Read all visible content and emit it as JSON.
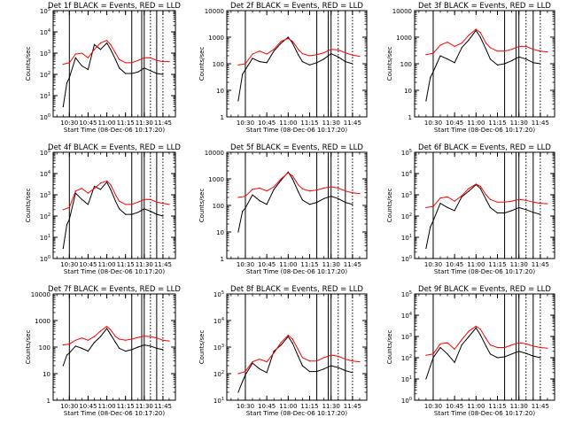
{
  "figure": {
    "xlabel": "Start Time (08-Dec-06 10:17:20)",
    "ylabel": "Counts/sec",
    "x_ticks": [
      "10:30",
      "10:45",
      "11:00",
      "11:15",
      "11:30",
      "11:45"
    ],
    "events_color": "#000000",
    "lld_color": "#ff0000"
  },
  "chart_data": [
    {
      "type": "line",
      "title": "Det 1f BLACK = Events, RED = LLD",
      "y_scale": "log",
      "y_tick_labels": [
        "10^0",
        "10^1",
        "10^2",
        "10^3",
        "10^4",
        "10^5"
      ],
      "series": [
        {
          "name": "Events",
          "x": [
            "10:25",
            "10:28",
            "10:30",
            "10:35",
            "10:40",
            "10:45",
            "10:50",
            "10:55",
            "11:00",
            "11:03",
            "11:07",
            "11:10",
            "11:15",
            "11:20",
            "11:25",
            "11:30",
            "11:35",
            "11:40",
            "11:45"
          ],
          "values": [
            3,
            40,
            70,
            600,
            250,
            170,
            2500,
            1500,
            3000,
            1500,
            500,
            200,
            110,
            110,
            130,
            200,
            150,
            110,
            100
          ]
        },
        {
          "name": "LLD",
          "x": [
            "10:25",
            "10:30",
            "10:35",
            "10:40",
            "10:45",
            "10:50",
            "10:55",
            "11:00",
            "11:03",
            "11:07",
            "11:10",
            "11:15",
            "11:20",
            "11:25",
            "11:30",
            "11:35",
            "11:40",
            "11:45",
            "11:50"
          ],
          "values": [
            300,
            350,
            900,
            1000,
            600,
            1500,
            3000,
            4000,
            2500,
            1000,
            500,
            350,
            350,
            450,
            600,
            600,
            450,
            400,
            400
          ]
        }
      ]
    },
    {
      "type": "line",
      "title": "Det 2f BLACK = Events, RED = LLD",
      "y_scale": "log",
      "y_tick_labels": [
        "1",
        "10",
        "100",
        "1000",
        "10000"
      ],
      "series": [
        {
          "name": "Events",
          "x": [
            "10:25",
            "10:28",
            "10:30",
            "10:35",
            "10:40",
            "10:45",
            "10:50",
            "10:55",
            "11:00",
            "11:03",
            "11:07",
            "11:10",
            "11:15",
            "11:20",
            "11:25",
            "11:30",
            "11:35",
            "11:40",
            "11:45"
          ],
          "values": [
            4,
            40,
            60,
            160,
            120,
            110,
            300,
            600,
            1000,
            600,
            220,
            120,
            90,
            110,
            150,
            240,
            180,
            120,
            100
          ]
        },
        {
          "name": "LLD",
          "x": [
            "10:25",
            "10:30",
            "10:35",
            "10:40",
            "10:45",
            "10:50",
            "10:55",
            "11:00",
            "11:03",
            "11:07",
            "11:10",
            "11:15",
            "11:20",
            "11:25",
            "11:30",
            "11:35",
            "11:40",
            "11:45",
            "11:50"
          ],
          "values": [
            90,
            100,
            230,
            300,
            230,
            350,
            700,
            900,
            700,
            350,
            240,
            200,
            220,
            260,
            350,
            330,
            260,
            210,
            190
          ]
        }
      ]
    },
    {
      "type": "line",
      "title": "Det 3f BLACK = Events, RED = LLD",
      "y_scale": "log",
      "y_tick_labels": [
        "1",
        "10",
        "100",
        "1000",
        "10000"
      ],
      "series": [
        {
          "name": "Events",
          "x": [
            "10:25",
            "10:28",
            "10:30",
            "10:35",
            "10:40",
            "10:45",
            "10:50",
            "10:55",
            "11:00",
            "11:03",
            "11:07",
            "11:10",
            "11:15",
            "11:20",
            "11:25",
            "11:30",
            "11:35",
            "11:40",
            "11:45"
          ],
          "values": [
            4,
            30,
            50,
            200,
            150,
            110,
            400,
            800,
            1800,
            1000,
            350,
            150,
            90,
            100,
            130,
            180,
            150,
            110,
            100
          ]
        },
        {
          "name": "LLD",
          "x": [
            "10:25",
            "10:30",
            "10:35",
            "10:40",
            "10:45",
            "10:50",
            "10:55",
            "11:00",
            "11:03",
            "11:07",
            "11:10",
            "11:15",
            "11:20",
            "11:25",
            "11:30",
            "11:35",
            "11:40",
            "11:45",
            "11:50"
          ],
          "values": [
            220,
            250,
            500,
            650,
            450,
            600,
            1200,
            2000,
            1500,
            600,
            400,
            300,
            300,
            350,
            450,
            450,
            350,
            300,
            280
          ]
        }
      ]
    },
    {
      "type": "line",
      "title": "Det 4f BLACK = Events, RED = LLD",
      "y_scale": "log",
      "y_tick_labels": [
        "10^0",
        "10^1",
        "10^2",
        "10^3",
        "10^4",
        "10^5"
      ],
      "series": [
        {
          "name": "Events",
          "x": [
            "10:25",
            "10:28",
            "10:30",
            "10:35",
            "10:40",
            "10:45",
            "10:50",
            "10:55",
            "11:00",
            "11:03",
            "11:07",
            "11:10",
            "11:15",
            "11:20",
            "11:25",
            "11:30",
            "11:35",
            "11:40",
            "11:45"
          ],
          "values": [
            3,
            40,
            70,
            1200,
            600,
            350,
            2500,
            1800,
            4000,
            1800,
            500,
            220,
            120,
            120,
            150,
            220,
            170,
            120,
            100
          ]
        },
        {
          "name": "LLD",
          "x": [
            "10:25",
            "10:30",
            "10:35",
            "10:40",
            "10:45",
            "10:50",
            "10:55",
            "11:00",
            "11:03",
            "11:07",
            "11:10",
            "11:15",
            "11:20",
            "11:25",
            "11:30",
            "11:35",
            "11:40",
            "11:45",
            "11:50"
          ],
          "values": [
            200,
            250,
            1500,
            2000,
            1200,
            2000,
            3500,
            4500,
            3000,
            1000,
            500,
            350,
            350,
            450,
            600,
            600,
            450,
            400,
            350
          ]
        }
      ]
    },
    {
      "type": "line",
      "title": "Det 5f BLACK = Events, RED = LLD",
      "y_scale": "log",
      "y_tick_labels": [
        "1",
        "10",
        "100",
        "1000",
        "10000"
      ],
      "series": [
        {
          "name": "Events",
          "x": [
            "10:25",
            "10:28",
            "10:30",
            "10:35",
            "10:40",
            "10:45",
            "10:50",
            "10:55",
            "11:00",
            "11:03",
            "11:07",
            "11:10",
            "11:15",
            "11:20",
            "11:25",
            "11:30",
            "11:35",
            "11:40",
            "11:45"
          ],
          "values": [
            10,
            60,
            80,
            250,
            150,
            110,
            400,
            900,
            1800,
            1000,
            330,
            160,
            110,
            130,
            180,
            220,
            180,
            130,
            110
          ]
        },
        {
          "name": "LLD",
          "x": [
            "10:25",
            "10:30",
            "10:35",
            "10:40",
            "10:45",
            "10:50",
            "10:55",
            "11:00",
            "11:03",
            "11:07",
            "11:10",
            "11:15",
            "11:20",
            "11:25",
            "11:30",
            "11:35",
            "11:40",
            "11:45",
            "11:50"
          ],
          "values": [
            200,
            220,
            400,
            450,
            350,
            500,
            1000,
            1700,
            1300,
            600,
            420,
            350,
            380,
            450,
            500,
            450,
            350,
            300,
            280
          ]
        }
      ]
    },
    {
      "type": "line",
      "title": "Det 6f BLACK = Events, RED = LLD",
      "y_scale": "log",
      "y_tick_labels": [
        "10^0",
        "10^1",
        "10^2",
        "10^3",
        "10^4",
        "10^5"
      ],
      "series": [
        {
          "name": "Events",
          "x": [
            "10:25",
            "10:28",
            "10:30",
            "10:35",
            "10:40",
            "10:45",
            "10:50",
            "10:55",
            "11:00",
            "11:03",
            "11:07",
            "11:10",
            "11:15",
            "11:20",
            "11:25",
            "11:30",
            "11:35",
            "11:40",
            "11:45"
          ],
          "values": [
            3,
            30,
            60,
            400,
            250,
            180,
            800,
            1500,
            3000,
            2000,
            600,
            250,
            140,
            140,
            180,
            250,
            200,
            150,
            120
          ]
        },
        {
          "name": "LLD",
          "x": [
            "10:25",
            "10:30",
            "10:35",
            "10:40",
            "10:45",
            "10:50",
            "10:55",
            "11:00",
            "11:03",
            "11:07",
            "11:10",
            "11:15",
            "11:20",
            "11:25",
            "11:30",
            "11:35",
            "11:40",
            "11:45",
            "11:50"
          ],
          "values": [
            250,
            280,
            700,
            800,
            500,
            900,
            2000,
            3200,
            2500,
            1000,
            600,
            450,
            450,
            500,
            600,
            550,
            450,
            400,
            380
          ]
        }
      ]
    },
    {
      "type": "line",
      "title": "Det 7f BLACK = Events, RED = LLD",
      "y_scale": "log",
      "y_tick_labels": [
        "1",
        "10",
        "100",
        "1000",
        "10000"
      ],
      "series": [
        {
          "name": "Events",
          "x": [
            "10:25",
            "10:28",
            "10:30",
            "10:35",
            "10:40",
            "10:45",
            "10:50",
            "10:55",
            "11:00",
            "11:03",
            "11:07",
            "11:10",
            "11:15",
            "11:20",
            "11:25",
            "11:30",
            "11:35",
            "11:40",
            "11:45"
          ],
          "values": [
            20,
            50,
            60,
            110,
            90,
            70,
            150,
            250,
            500,
            300,
            150,
            90,
            70,
            80,
            100,
            120,
            110,
            90,
            80
          ]
        },
        {
          "name": "LLD",
          "x": [
            "10:25",
            "10:30",
            "10:35",
            "10:40",
            "10:45",
            "10:50",
            "10:55",
            "11:00",
            "11:03",
            "11:07",
            "11:10",
            "11:15",
            "11:20",
            "11:25",
            "11:30",
            "11:35",
            "11:40",
            "11:45",
            "11:50"
          ],
          "values": [
            120,
            130,
            180,
            220,
            180,
            250,
            400,
            600,
            450,
            250,
            200,
            180,
            200,
            230,
            260,
            250,
            220,
            180,
            170
          ]
        }
      ]
    },
    {
      "type": "line",
      "title": "Det 8f BLACK = Events, RED = LLD",
      "y_scale": "log",
      "y_tick_labels": [
        "10^1",
        "10^2",
        "10^3",
        "10^4",
        "10^5"
      ],
      "series": [
        {
          "name": "Events",
          "x": [
            "10:25",
            "10:28",
            "10:30",
            "10:35",
            "10:40",
            "10:45",
            "10:50",
            "10:55",
            "11:00",
            "11:03",
            "11:07",
            "11:10",
            "11:15",
            "11:20",
            "11:25",
            "11:30",
            "11:35",
            "11:40",
            "11:45"
          ],
          "values": [
            20,
            50,
            90,
            250,
            150,
            110,
            700,
            1200,
            2500,
            1400,
            450,
            200,
            120,
            120,
            150,
            200,
            170,
            130,
            110
          ]
        },
        {
          "name": "LLD",
          "x": [
            "10:25",
            "10:30",
            "10:35",
            "10:40",
            "10:45",
            "10:50",
            "10:55",
            "11:00",
            "11:03",
            "11:07",
            "11:10",
            "11:15",
            "11:20",
            "11:25",
            "11:30",
            "11:35",
            "11:40",
            "11:45",
            "11:50"
          ],
          "values": [
            100,
            120,
            280,
            350,
            280,
            600,
            1500,
            2800,
            2000,
            800,
            400,
            300,
            300,
            400,
            500,
            450,
            350,
            300,
            280
          ]
        }
      ]
    },
    {
      "type": "line",
      "title": "Det 9f BLACK = Events, RED = LLD",
      "y_scale": "log",
      "y_tick_labels": [
        "10^0",
        "10^1",
        "10^2",
        "10^3",
        "10^4",
        "10^5"
      ],
      "series": [
        {
          "name": "Events",
          "x": [
            "10:25",
            "10:28",
            "10:30",
            "10:35",
            "10:40",
            "10:45",
            "10:50",
            "10:55",
            "11:00",
            "11:03",
            "11:07",
            "11:10",
            "11:15",
            "11:20",
            "11:25",
            "11:30",
            "11:35",
            "11:40",
            "11:45"
          ],
          "values": [
            10,
            40,
            100,
            300,
            150,
            60,
            400,
            1000,
            2500,
            1200,
            350,
            150,
            100,
            110,
            150,
            200,
            160,
            120,
            100
          ]
        },
        {
          "name": "LLD",
          "x": [
            "10:25",
            "10:30",
            "10:35",
            "10:40",
            "10:45",
            "10:50",
            "10:55",
            "11:00",
            "11:03",
            "11:07",
            "11:10",
            "11:15",
            "11:20",
            "11:25",
            "11:30",
            "11:35",
            "11:40",
            "11:45",
            "11:50"
          ],
          "values": [
            130,
            150,
            450,
            500,
            250,
            700,
            1800,
            3000,
            2200,
            800,
            400,
            300,
            300,
            400,
            500,
            450,
            350,
            300,
            280
          ]
        }
      ]
    }
  ]
}
